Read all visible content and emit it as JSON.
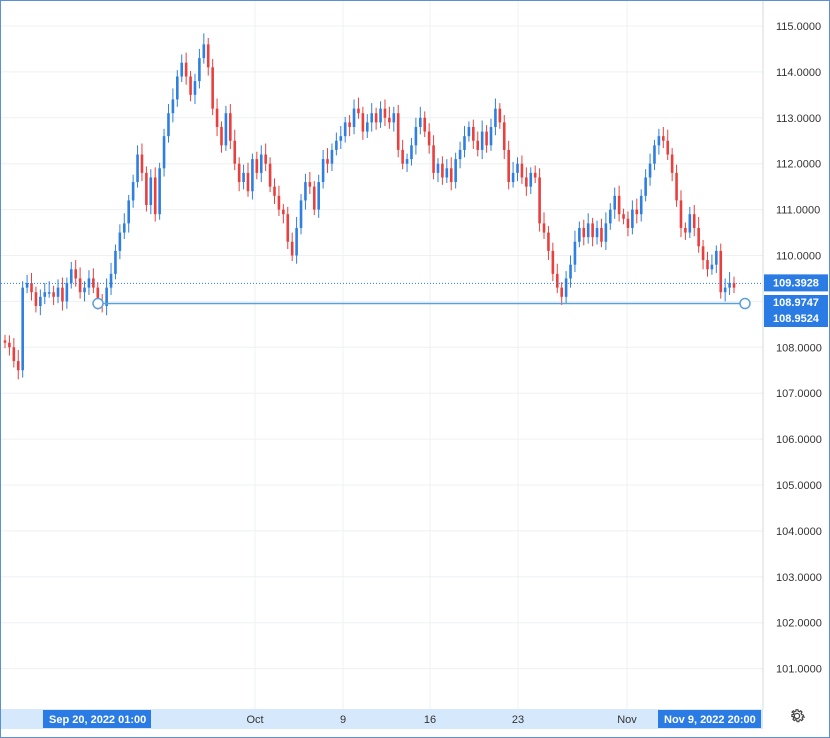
{
  "chart_data": {
    "type": "candlestick",
    "y_ticks": [
      "115.0000",
      "114.0000",
      "113.0000",
      "112.0000",
      "111.0000",
      "110.0000",
      "109.0000",
      "108.0000",
      "107.0000",
      "106.0000",
      "105.0000",
      "104.0000",
      "103.0000",
      "102.0000",
      "101.0000"
    ],
    "ylim": [
      100.3,
      115.3
    ],
    "x_ticks": [
      "Oct",
      "9",
      "16",
      "23",
      "Nov"
    ],
    "series_close": [
      108.1,
      108.0,
      107.7,
      107.5,
      109.3,
      109.4,
      109.2,
      108.9,
      109.1,
      109.2,
      109.2,
      109.1,
      109.3,
      109.0,
      109.4,
      109.7,
      109.5,
      109.2,
      109.3,
      109.5,
      109.3,
      109.0,
      108.9,
      109.3,
      109.6,
      110.1,
      110.5,
      110.7,
      111.2,
      111.6,
      112.2,
      111.8,
      111.1,
      111.7,
      110.9,
      111.9,
      112.6,
      113.1,
      113.4,
      113.9,
      114.2,
      113.9,
      113.5,
      113.8,
      114.3,
      114.6,
      114.1,
      113.2,
      112.8,
      112.4,
      113.1,
      112.5,
      112.0,
      111.6,
      111.8,
      111.4,
      112.1,
      111.8,
      112.2,
      112.0,
      111.5,
      111.3,
      111.0,
      110.9,
      110.3,
      110.0,
      110.6,
      111.2,
      111.6,
      111.5,
      111.0,
      111.6,
      112.1,
      112.0,
      112.3,
      112.5,
      112.6,
      112.9,
      112.8,
      113.2,
      113.1,
      112.7,
      112.9,
      113.1,
      112.9,
      113.2,
      113.0,
      112.9,
      113.1,
      112.3,
      112.0,
      112.1,
      112.4,
      112.8,
      113.0,
      112.7,
      112.4,
      111.8,
      112.0,
      111.7,
      111.9,
      111.6,
      112.1,
      112.3,
      112.6,
      112.8,
      112.5,
      112.3,
      112.7,
      112.4,
      112.8,
      113.2,
      112.9,
      112.3,
      111.6,
      111.8,
      112.0,
      111.7,
      111.5,
      111.8,
      111.7,
      110.7,
      110.5,
      110.1,
      109.6,
      109.3,
      109.1,
      109.5,
      109.8,
      110.3,
      110.6,
      110.4,
      110.7,
      110.4,
      110.6,
      110.3,
      110.7,
      111.0,
      111.3,
      110.9,
      110.8,
      110.6,
      111.0,
      110.9,
      111.3,
      111.7,
      112.0,
      112.4,
      112.6,
      112.5,
      112.2,
      111.8,
      111.2,
      110.6,
      110.5,
      110.9,
      110.6,
      110.2,
      109.9,
      109.7,
      109.8,
      110.1,
      109.2,
      109.3,
      109.4,
      109.3
    ],
    "current_price_label": "109.3928",
    "level_labels": [
      "108.9747",
      "108.9524"
    ],
    "x_range_start_label": "Sep 20, 2022  01:00",
    "x_range_end_label": "Nov 9, 2022  20:00",
    "colors": {
      "up": "#2f7fe0",
      "down": "#e8403f",
      "level": "#5aa0db",
      "badge": "#2b7be4",
      "grid": "#eef0f3"
    }
  },
  "icons": {
    "settings": "gear-icon"
  }
}
